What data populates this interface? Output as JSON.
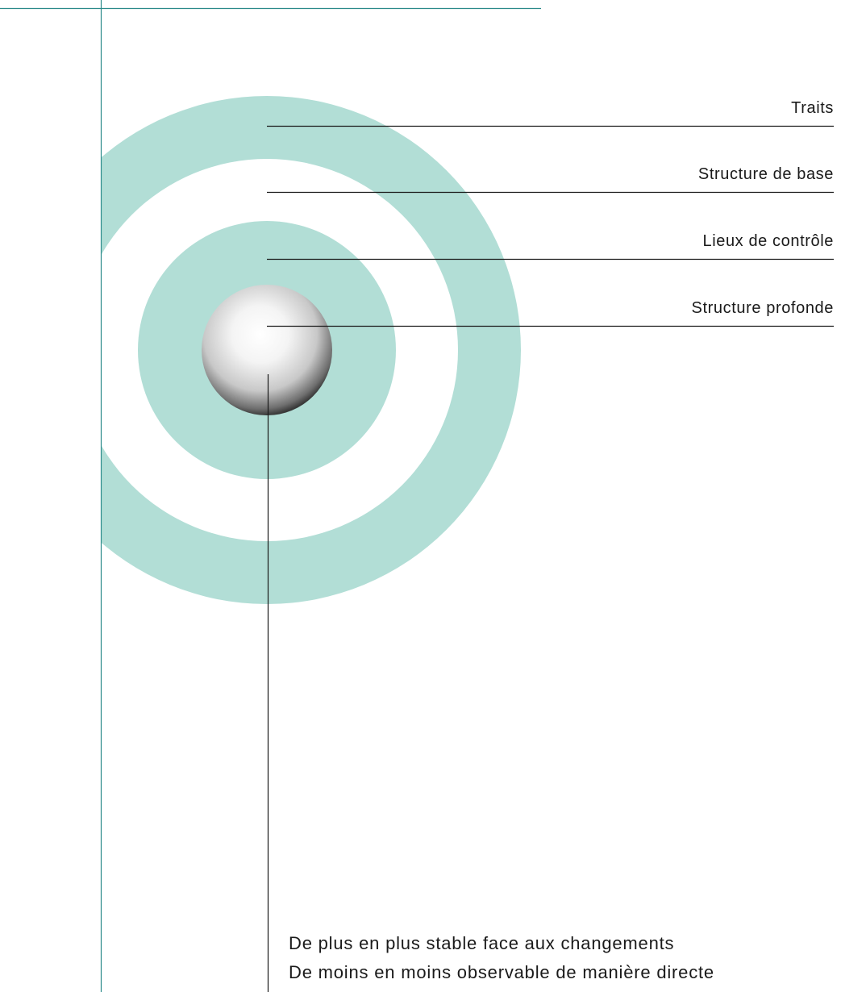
{
  "colors": {
    "ring_fill": "#b2ded6",
    "frame_line": "#2a8a8a",
    "leader_line": "#1a1a1a",
    "text": "#1a1a1a"
  },
  "layers": [
    {
      "label": "Traits"
    },
    {
      "label": "Structure de base"
    },
    {
      "label": "Lieux de contrôle"
    },
    {
      "label": "Structure profonde"
    }
  ],
  "captions": [
    "De plus en plus stable face aux changements",
    "De moins en moins observable de manière directe"
  ]
}
